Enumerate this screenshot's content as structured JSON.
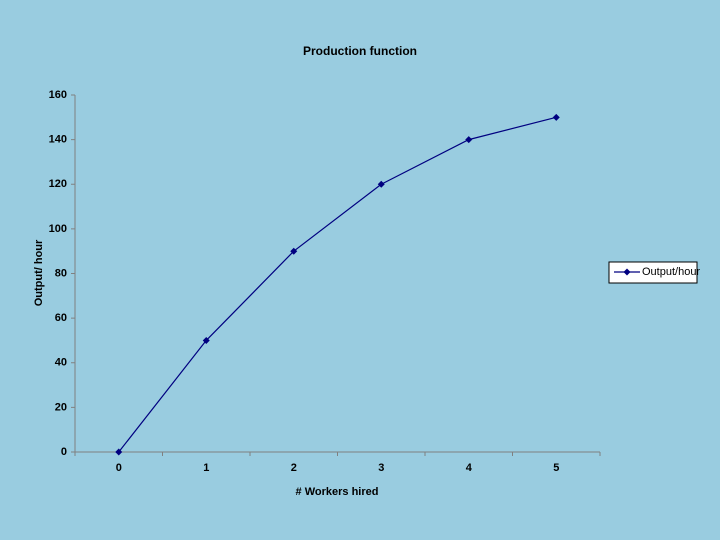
{
  "chart_data": {
    "type": "line",
    "title": "Production function",
    "x_label": "# Workers hired",
    "y_label": "Output/ hour",
    "categories": [
      "0",
      "1",
      "2",
      "3",
      "4",
      "5"
    ],
    "series": [
      {
        "name": "Output/hour",
        "color": "#000080",
        "values": [
          0,
          50,
          90,
          120,
          140,
          150
        ]
      }
    ],
    "ylim": [
      0,
      160
    ],
    "yticks": [
      0,
      20,
      40,
      60,
      80,
      100,
      120,
      140,
      160
    ],
    "grid": false,
    "legend": "right"
  }
}
